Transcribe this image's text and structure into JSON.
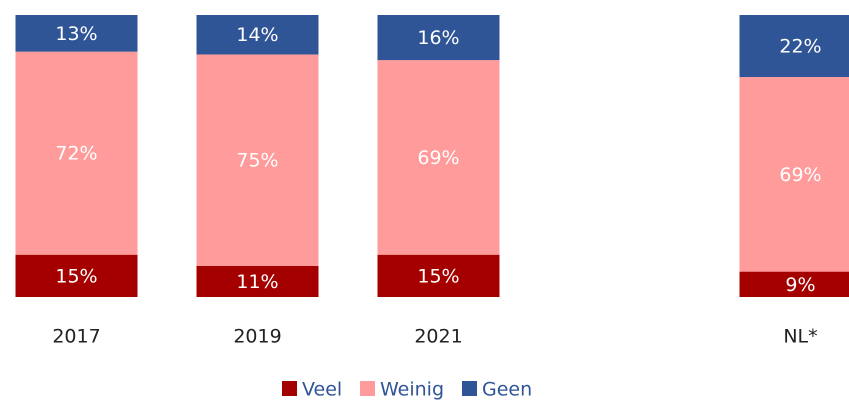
{
  "chart_data": {
    "type": "stacked_bar",
    "categories": [
      "2017",
      "2019",
      "2021",
      null,
      "NL*"
    ],
    "series": [
      {
        "name": "Veel",
        "color": "#a50000",
        "values": [
          15,
          11,
          15,
          null,
          9
        ],
        "value_labels": [
          "15%",
          "11%",
          "15%",
          null,
          "9%"
        ]
      },
      {
        "name": "Weinig",
        "color": "#ff9b9b",
        "values": [
          72,
          75,
          69,
          null,
          69
        ],
        "value_labels": [
          "72%",
          "75%",
          "69%",
          null,
          "69%"
        ]
      },
      {
        "name": "Geen",
        "color": "#2f5597",
        "values": [
          13,
          14,
          16,
          null,
          22
        ],
        "value_labels": [
          "13%",
          "14%",
          "16%",
          null,
          "22%"
        ]
      }
    ],
    "ylim": [
      0,
      100
    ]
  }
}
